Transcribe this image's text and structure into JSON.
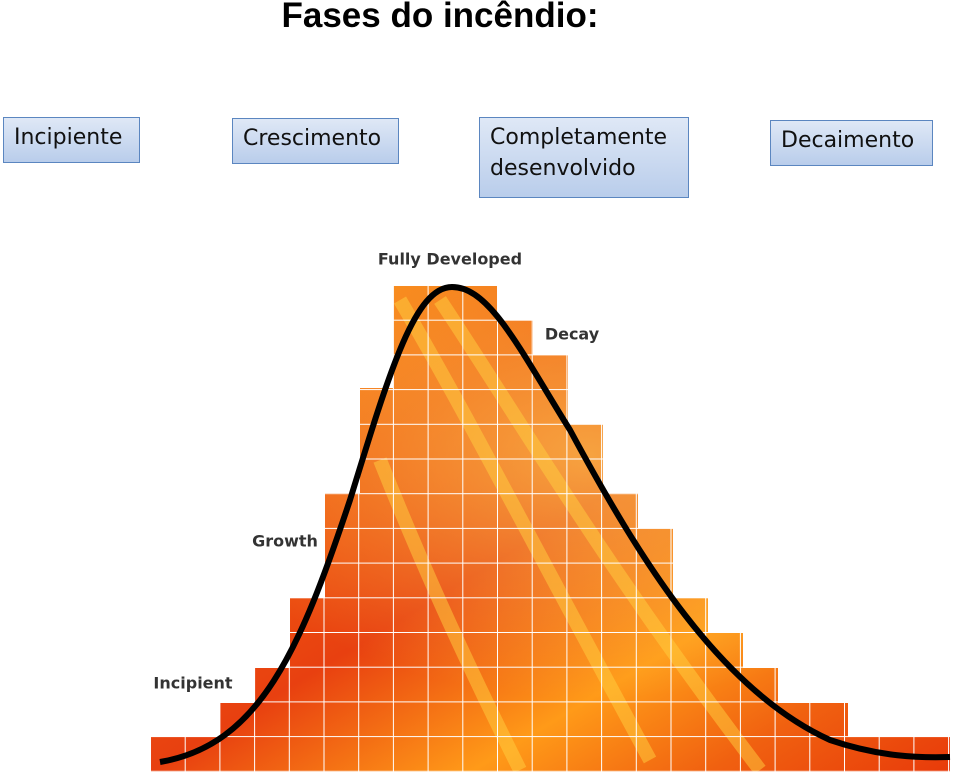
{
  "title": "Fases do incêndio:",
  "phases": [
    [
      "Incipiente"
    ],
    [
      "Crescimento"
    ],
    [
      "Completamente",
      "desenvolvido"
    ],
    [
      "Decaimento"
    ]
  ],
  "diagram": {
    "labels": [
      "Fully Developed",
      "Decay",
      "Growth",
      "Incipient"
    ]
  }
}
